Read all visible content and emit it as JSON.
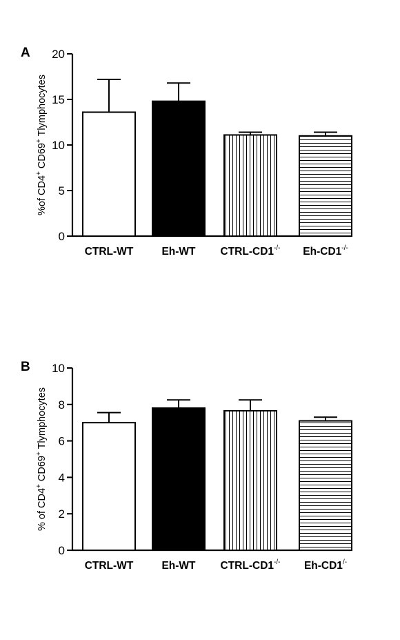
{
  "chart_data": [
    {
      "type": "bar",
      "panel_label": "A",
      "ylabel": {
        "prefix": "%of CD4",
        "sup1": "+",
        "mid": " CD69",
        "sup2": "+",
        "suffix": " Tlymphocytes"
      },
      "categories": [
        {
          "base": "CTRL-WT",
          "sup": "",
          "fill": "white"
        },
        {
          "base": "Eh-WT",
          "sup": "",
          "fill": "black"
        },
        {
          "base": "CTRL-CD1",
          "sup": "-/-",
          "fill": "vertical-stripes"
        },
        {
          "base": "Eh-CD1",
          "sup": "-/-",
          "fill": "horizontal-stripes"
        }
      ],
      "values": [
        13.6,
        14.8,
        11.1,
        11.0
      ],
      "errors": [
        3.6,
        2.0,
        0.3,
        0.4
      ],
      "ylim": [
        0,
        20
      ],
      "yticks": [
        0,
        5,
        10,
        15,
        20
      ],
      "ytick_labels": [
        "0",
        "5",
        "10",
        "15",
        "20"
      ]
    },
    {
      "type": "bar",
      "panel_label": "B",
      "ylabel": {
        "prefix": "% of CD4",
        "sup1": "+",
        "mid": " CD69",
        "sup2": "+",
        "suffix": " Tlymphocytes"
      },
      "categories": [
        {
          "base": "CTRL-WT",
          "sup": "",
          "fill": "white"
        },
        {
          "base": "Eh-WT",
          "sup": "",
          "fill": "black"
        },
        {
          "base": "CTRL-CD1",
          "sup": "-/-",
          "fill": "vertical-stripes"
        },
        {
          "base": "Eh-CD1",
          "sup": "/-",
          "fill": "horizontal-stripes"
        }
      ],
      "values": [
        7.0,
        7.8,
        7.65,
        7.1
      ],
      "errors": [
        0.55,
        0.45,
        0.6,
        0.2
      ],
      "ylim": [
        0,
        10
      ],
      "yticks": [
        0,
        2,
        4,
        6,
        8,
        10
      ],
      "ytick_labels": [
        "0",
        "2",
        "4",
        "6",
        "8",
        "10"
      ]
    }
  ]
}
